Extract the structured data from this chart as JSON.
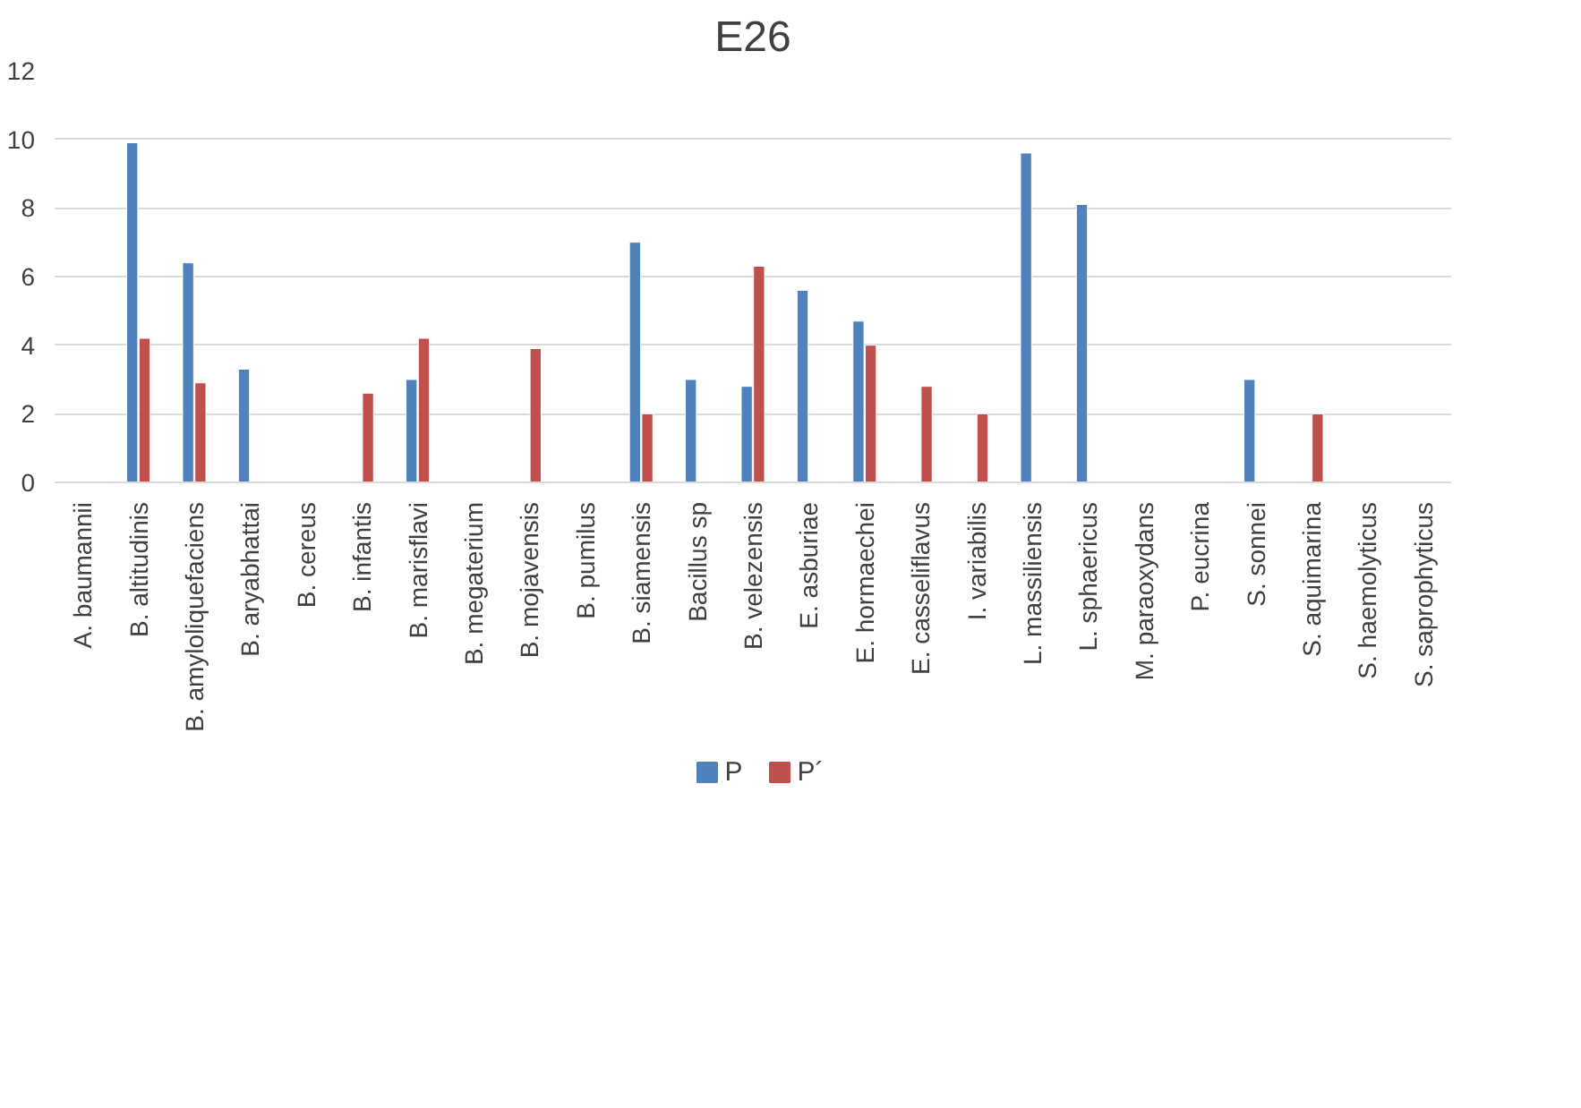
{
  "chart_data": {
    "type": "bar",
    "title": "E26",
    "categories": [
      "A. baumannii",
      "B. altitudinis",
      "B. amyloliquefaciens",
      "B. aryabhattai",
      "B. cereus",
      "B. infantis",
      "B. marisflavi",
      "B. megaterium",
      "B. mojavensis",
      "B. pumilus",
      "B. siamensis",
      "Bacillus sp",
      "B. velezensis",
      "E. asburiae",
      "E. hormaechei",
      "E. casseliflavus",
      "I. variabilis",
      "L. massiliensis",
      "L. sphaericus",
      "M. paraoxydans",
      "P. eucrina",
      "S. sonnei",
      "S. aquimarina",
      "S. haemolyticus",
      "S. saprophyticus"
    ],
    "series": [
      {
        "name": "P",
        "color": "#4f81bd",
        "values": [
          null,
          9.9,
          6.4,
          3.3,
          null,
          null,
          3.0,
          null,
          null,
          null,
          7.0,
          3.0,
          2.8,
          5.6,
          4.7,
          null,
          null,
          9.6,
          8.1,
          null,
          null,
          3.0,
          null,
          null,
          null
        ]
      },
      {
        "name": "P´",
        "color": "#c0504d",
        "values": [
          null,
          4.2,
          2.9,
          null,
          null,
          2.6,
          4.2,
          null,
          3.9,
          null,
          2.0,
          null,
          6.3,
          null,
          4.0,
          2.8,
          2.0,
          null,
          null,
          null,
          null,
          null,
          2.0,
          null,
          null
        ]
      }
    ],
    "ylim": [
      0,
      12
    ],
    "yticks": [
      0,
      2,
      4,
      6,
      8,
      10,
      12
    ],
    "grid": "y",
    "legend": "bottom"
  }
}
